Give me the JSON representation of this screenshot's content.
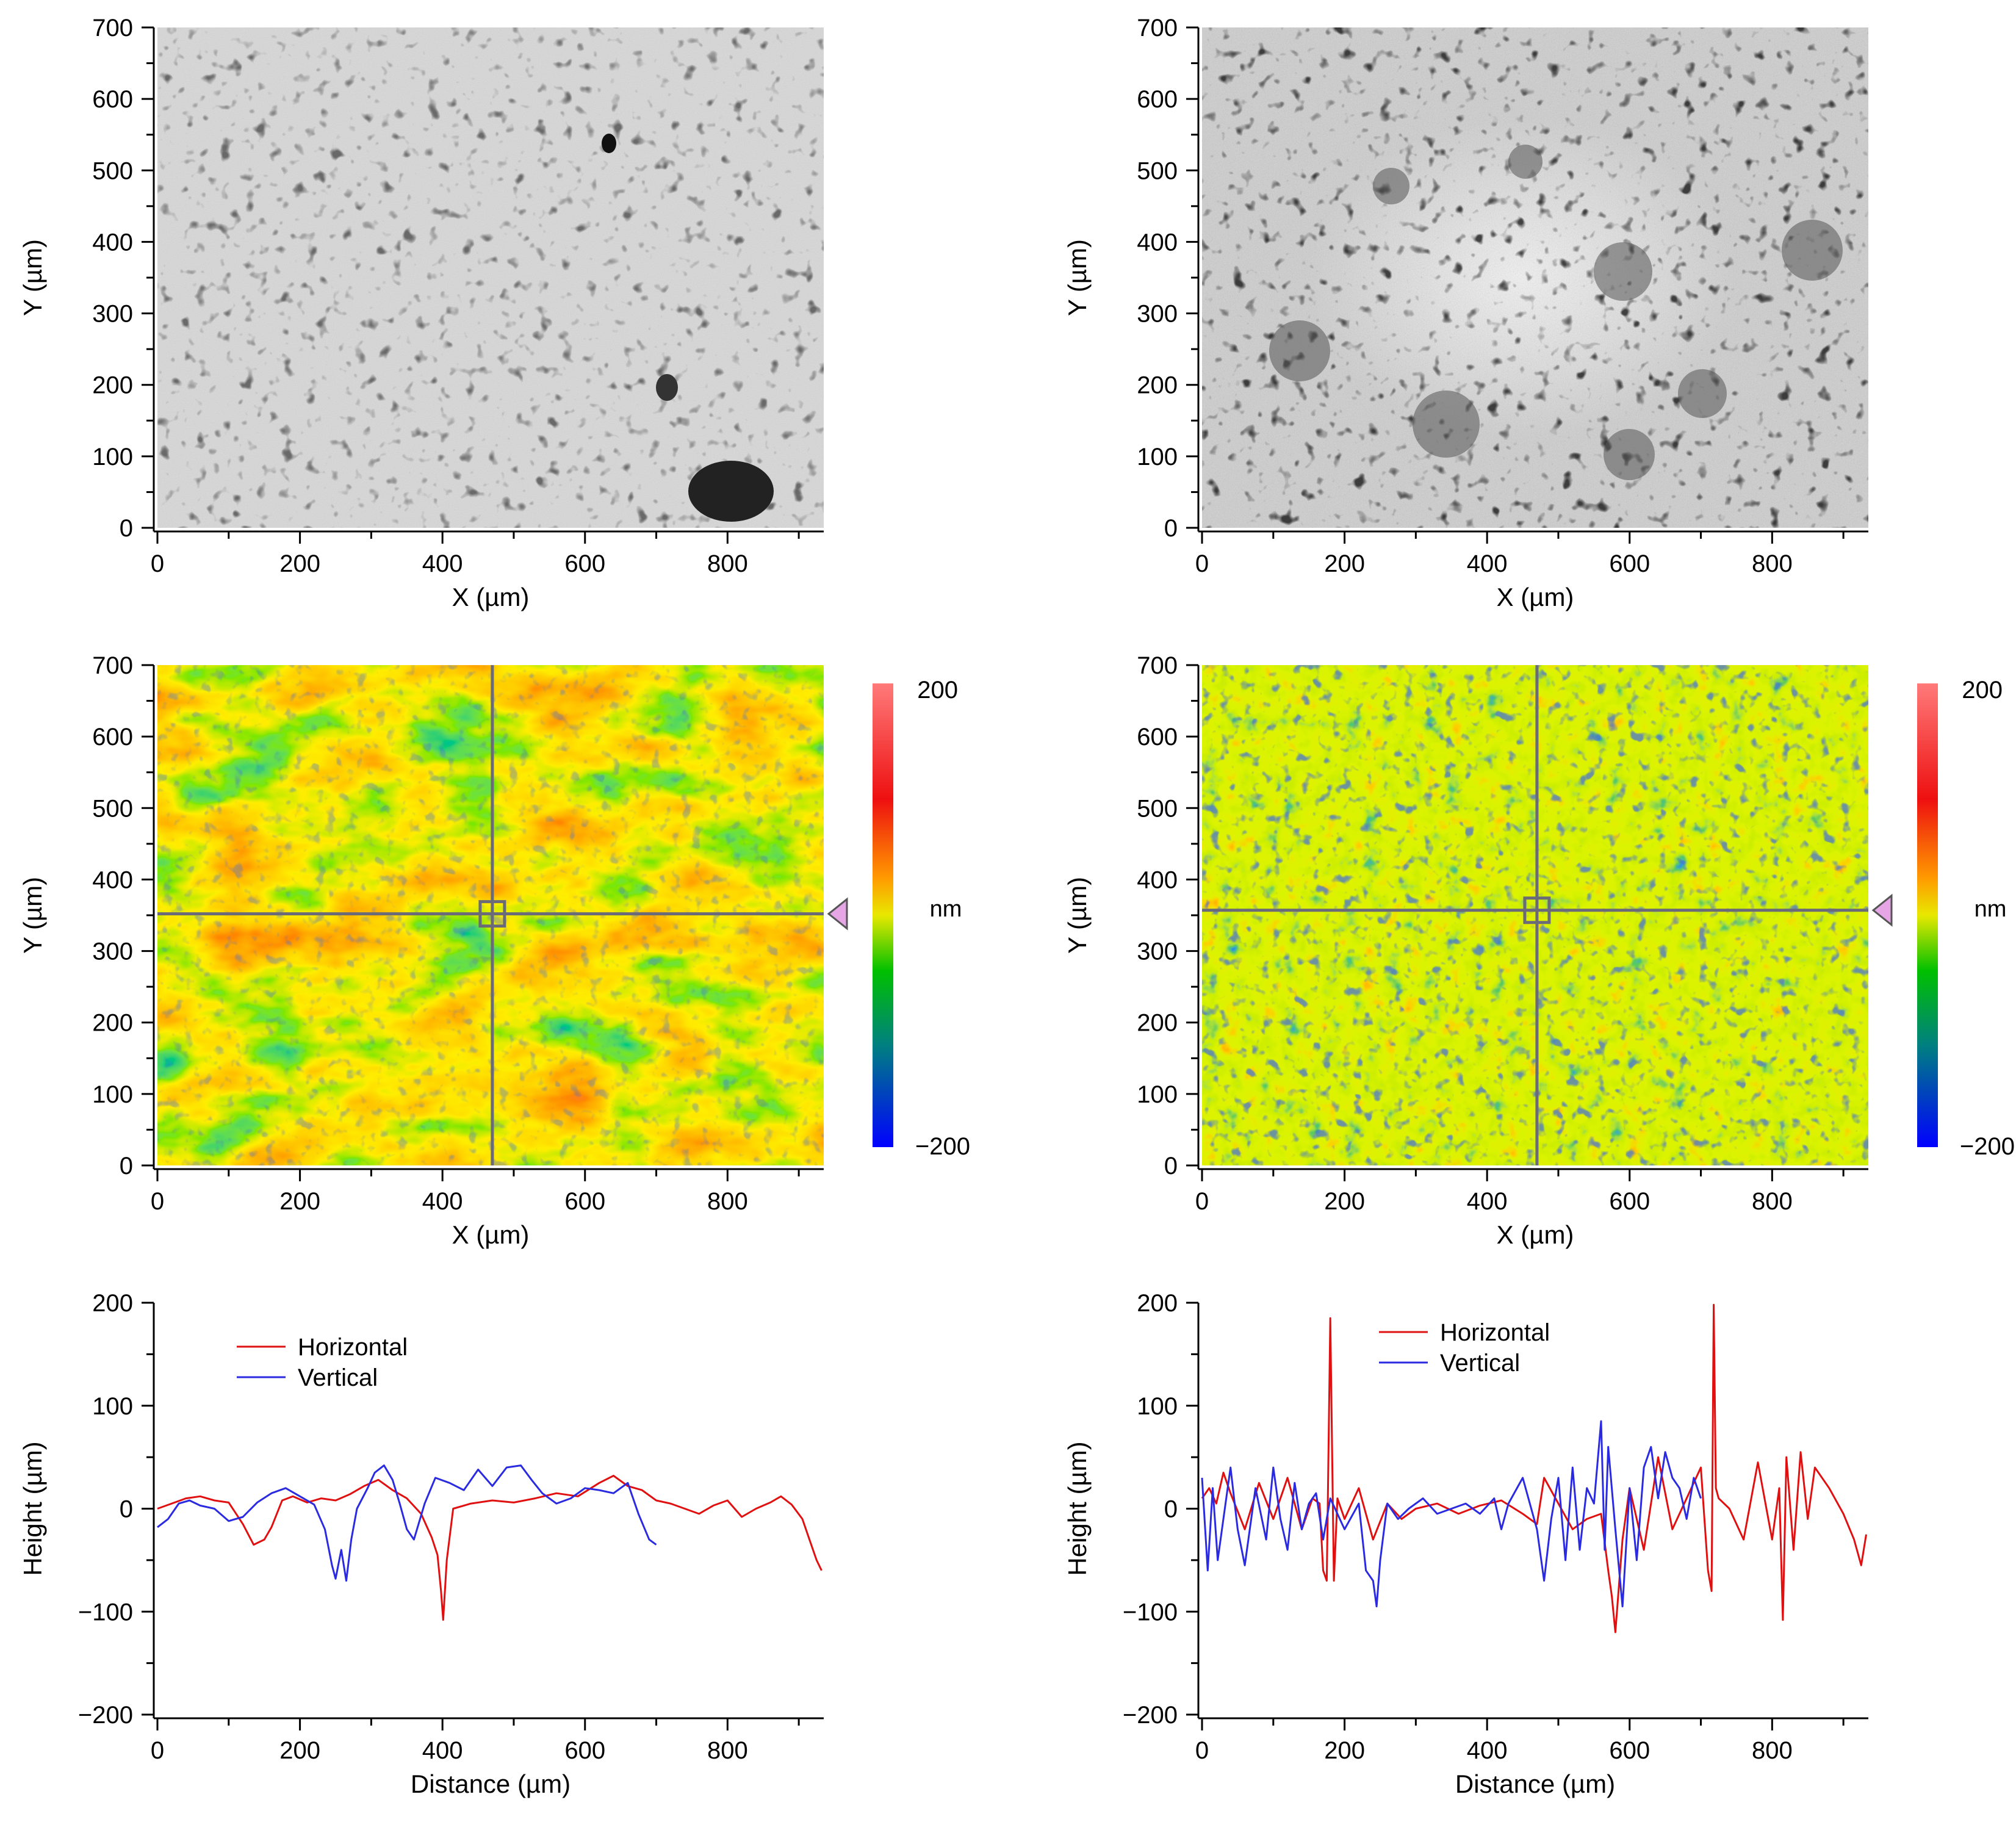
{
  "colors": {
    "horizontal": "#e01010",
    "vertical": "#2a2ae0",
    "axis": "#000000",
    "crosshair": "#6a6a78",
    "marker": "#e6a6e6"
  },
  "chart_data": [
    {
      "id": "micrograph-left",
      "type": "heatmap",
      "title": "",
      "xlabel": "X (µm)",
      "ylabel": "Y (µm)",
      "xlim": [
        0,
        935
      ],
      "ylim": [
        0,
        700
      ],
      "xticks": [
        0,
        200,
        400,
        600,
        800
      ],
      "yticks": [
        0,
        100,
        200,
        300,
        400,
        500,
        600,
        700
      ],
      "colormap": "grayscale"
    },
    {
      "id": "micrograph-right",
      "type": "heatmap",
      "title": "",
      "xlabel": "X (µm)",
      "ylabel": "Y (µm)",
      "xlim": [
        0,
        935
      ],
      "ylim": [
        0,
        700
      ],
      "xticks": [
        0,
        200,
        400,
        600,
        800
      ],
      "yticks": [
        0,
        100,
        200,
        300,
        400,
        500,
        600,
        700
      ],
      "colormap": "grayscale"
    },
    {
      "id": "heightmap-left",
      "type": "heatmap",
      "xlabel": "X (µm)",
      "ylabel": "Y (µm)",
      "xlim": [
        0,
        935
      ],
      "ylim": [
        0,
        700
      ],
      "xticks": [
        0,
        200,
        400,
        600,
        800
      ],
      "yticks": [
        0,
        100,
        200,
        300,
        400,
        500,
        600,
        700
      ],
      "colorbar": {
        "max_label": "200",
        "min_label": "−200",
        "unit": "nm",
        "range": [
          -200,
          200
        ]
      },
      "crosshair": {
        "x": 470,
        "y": 352
      }
    },
    {
      "id": "heightmap-right",
      "type": "heatmap",
      "xlabel": "X (µm)",
      "ylabel": "Y (µm)",
      "xlim": [
        0,
        935
      ],
      "ylim": [
        0,
        700
      ],
      "xticks": [
        0,
        200,
        400,
        600,
        800
      ],
      "yticks": [
        0,
        100,
        200,
        300,
        400,
        500,
        600,
        700
      ],
      "colorbar": {
        "max_label": "200",
        "min_label": "−200",
        "unit": "nm",
        "range": [
          -200,
          200
        ]
      },
      "crosshair": {
        "x": 470,
        "y": 357
      }
    },
    {
      "id": "profile-left",
      "type": "line",
      "xlabel": "Distance (µm)",
      "ylabel": "Height (µm)",
      "xlim": [
        0,
        935
      ],
      "ylim": [
        -200,
        200
      ],
      "xticks": [
        0,
        200,
        400,
        600,
        800
      ],
      "yticks": [
        -200,
        -100,
        0,
        100,
        200
      ],
      "legend": [
        "Horizontal",
        "Vertical"
      ],
      "series": [
        {
          "name": "Horizontal",
          "x": [
            0,
            20,
            40,
            60,
            80,
            100,
            120,
            135,
            150,
            160,
            175,
            190,
            210,
            230,
            250,
            270,
            290,
            310,
            330,
            350,
            370,
            385,
            393,
            398,
            401,
            406,
            415,
            440,
            470,
            500,
            530,
            560,
            590,
            620,
            640,
            660,
            680,
            700,
            720,
            740,
            760,
            780,
            800,
            820,
            840,
            860,
            875,
            890,
            905,
            915,
            925,
            932
          ],
          "y": [
            0,
            5,
            10,
            12,
            8,
            6,
            -15,
            -35,
            -30,
            -18,
            8,
            12,
            6,
            10,
            8,
            14,
            22,
            28,
            18,
            10,
            -5,
            -28,
            -45,
            -80,
            -108,
            -50,
            0,
            5,
            8,
            6,
            10,
            15,
            12,
            25,
            32,
            22,
            18,
            8,
            5,
            0,
            -5,
            3,
            8,
            -8,
            0,
            6,
            12,
            4,
            -10,
            -30,
            -50,
            -60
          ]
        },
        {
          "name": "Vertical",
          "x": [
            0,
            15,
            30,
            45,
            60,
            80,
            100,
            120,
            140,
            160,
            180,
            200,
            220,
            235,
            245,
            250,
            258,
            265,
            272,
            280,
            295,
            305,
            318,
            330,
            340,
            350,
            360,
            375,
            390,
            410,
            430,
            450,
            470,
            490,
            510,
            525,
            540,
            560,
            580,
            600,
            620,
            640,
            660,
            675,
            690,
            700
          ],
          "y": [
            -18,
            -10,
            5,
            8,
            3,
            0,
            -12,
            -8,
            6,
            15,
            20,
            12,
            4,
            -20,
            -55,
            -68,
            -40,
            -70,
            -30,
            0,
            20,
            35,
            42,
            28,
            5,
            -20,
            -30,
            5,
            30,
            25,
            18,
            38,
            22,
            40,
            42,
            28,
            15,
            5,
            10,
            20,
            18,
            15,
            25,
            -5,
            -30,
            -35
          ]
        }
      ]
    },
    {
      "id": "profile-right",
      "type": "line",
      "xlabel": "Distance (µm)",
      "ylabel": "Height (µm)",
      "xlim": [
        0,
        935
      ],
      "ylim": [
        -200,
        200
      ],
      "xticks": [
        0,
        200,
        400,
        600,
        800
      ],
      "yticks": [
        -200,
        -100,
        0,
        100,
        200
      ],
      "legend": [
        "Horizontal",
        "Vertical"
      ],
      "series": [
        {
          "name": "Horizontal",
          "x": [
            0,
            10,
            20,
            30,
            40,
            60,
            80,
            100,
            120,
            140,
            155,
            165,
            170,
            175,
            180,
            185,
            190,
            200,
            220,
            240,
            260,
            280,
            300,
            330,
            360,
            390,
            420,
            450,
            470,
            480,
            500,
            520,
            540,
            560,
            570,
            575,
            580,
            590,
            600,
            620,
            640,
            660,
            680,
            700,
            710,
            715,
            718,
            721,
            725,
            740,
            760,
            780,
            800,
            810,
            815,
            820,
            830,
            840,
            850,
            860,
            880,
            900,
            915,
            925,
            932
          ],
          "y": [
            10,
            20,
            5,
            35,
            15,
            -20,
            25,
            -10,
            30,
            -20,
            10,
            5,
            -60,
            -70,
            185,
            -70,
            10,
            -10,
            20,
            -30,
            5,
            -10,
            0,
            5,
            -5,
            3,
            8,
            -5,
            -15,
            30,
            5,
            -20,
            -10,
            -5,
            -60,
            -85,
            -120,
            -30,
            20,
            -40,
            50,
            -20,
            10,
            40,
            -60,
            -80,
            198,
            20,
            10,
            0,
            -30,
            45,
            -30,
            20,
            -108,
            50,
            -40,
            55,
            -10,
            40,
            20,
            -5,
            -30,
            -55,
            -25
          ]
        },
        {
          "name": "Vertical",
          "x": [
            0,
            8,
            15,
            22,
            30,
            40,
            50,
            60,
            75,
            90,
            100,
            110,
            120,
            130,
            140,
            150,
            160,
            170,
            180,
            200,
            220,
            230,
            240,
            245,
            250,
            260,
            275,
            290,
            310,
            330,
            350,
            370,
            390,
            410,
            420,
            430,
            450,
            470,
            480,
            490,
            500,
            510,
            520,
            530,
            540,
            550,
            560,
            565,
            570,
            580,
            590,
            600,
            610,
            620,
            630,
            640,
            650,
            660,
            670,
            680,
            690,
            700
          ],
          "y": [
            30,
            -60,
            20,
            -50,
            -10,
            40,
            -20,
            -55,
            20,
            -30,
            40,
            -10,
            -40,
            25,
            -20,
            5,
            15,
            -30,
            10,
            -20,
            5,
            -60,
            -70,
            -95,
            -50,
            5,
            -10,
            0,
            10,
            -5,
            0,
            5,
            -5,
            10,
            -20,
            5,
            30,
            -20,
            -70,
            -10,
            30,
            -50,
            40,
            -40,
            20,
            5,
            85,
            -40,
            60,
            -20,
            -95,
            20,
            -50,
            40,
            60,
            10,
            55,
            30,
            20,
            -10,
            30,
            10
          ]
        }
      ]
    }
  ]
}
